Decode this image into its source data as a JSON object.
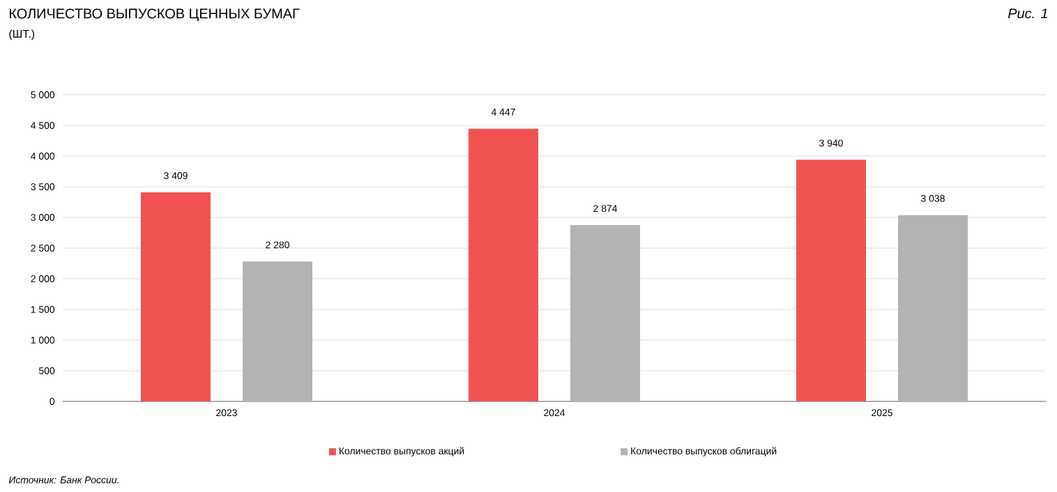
{
  "chart_data": {
    "type": "bar",
    "title": "КОЛИЧЕСТВО ВЫПУСКОВ ЦЕННЫХ БУМАГ",
    "subtitle": "(ШТ.)",
    "annotations": [
      "Рис. 1",
      "Источник: Банк России."
    ],
    "categories": [
      "2023",
      "2024",
      "2025"
    ],
    "series": [
      {
        "name": "Количество выпусков акций",
        "color": "#f05252",
        "values": [
          3409,
          4447,
          3940
        ],
        "value_labels": [
          "3 409",
          "4 447",
          "3 940"
        ]
      },
      {
        "name": "Количество выпусков облигаций",
        "color": "#b3b3b3",
        "values": [
          2280,
          2874,
          3038
        ],
        "value_labels": [
          "2 280",
          "2 874",
          "3 038"
        ]
      }
    ],
    "ylim": [
      0,
      5000
    ],
    "yticks": [
      0,
      {
        "value": 500,
        "label": "500"
      },
      {
        "value": 1000,
        "label": "1 000"
      },
      {
        "value": 1500,
        "label": "1 500"
      },
      {
        "value": 2000,
        "label": "2 000"
      },
      {
        "value": 2500,
        "label": "2 500"
      },
      {
        "value": 3000,
        "label": "3 000"
      },
      {
        "value": 3500,
        "label": "3 500"
      },
      {
        "value": 4000,
        "label": "4 000"
      },
      {
        "value": 4500,
        "label": "4 500"
      },
      {
        "value": 5000,
        "label": "5 000"
      }
    ],
    "grid": "y",
    "legend": "bottom"
  }
}
